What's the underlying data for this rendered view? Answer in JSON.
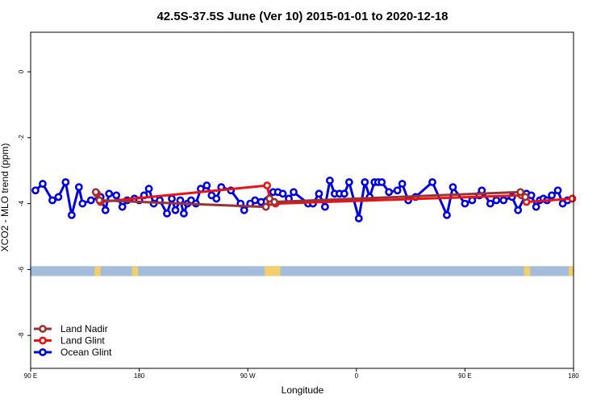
{
  "chart_data": {
    "type": "line",
    "title": "42.5S-37.5S June (Ver 10)   2015-01-01 to 2020-12-18",
    "xlabel": "Longitude",
    "ylabel": "XCO2 - MLO trend (ppm)",
    "xlim": [
      90,
      540
    ],
    "ylim": [
      -9,
      1.2
    ],
    "x_ticks": [
      {
        "value": 90,
        "label": "90 E"
      },
      {
        "value": 180,
        "label": "180"
      },
      {
        "value": 270,
        "label": "90 W"
      },
      {
        "value": 360,
        "label": "0"
      },
      {
        "value": 450,
        "label": "90 E"
      },
      {
        "value": 540,
        "label": "180"
      }
    ],
    "y_ticks": [
      {
        "value": 0,
        "label": "0"
      },
      {
        "value": -2,
        "label": "-2"
      },
      {
        "value": -4,
        "label": "-4"
      },
      {
        "value": -6,
        "label": "-6"
      },
      {
        "value": -8,
        "label": "-8"
      }
    ],
    "legend_position": "bottom-left",
    "surface_band": {
      "y_range": [
        -6.2,
        -5.9
      ],
      "ocean_color": "#a3bcd9",
      "land_color": "#f2cf6b",
      "land_segments": [
        [
          143,
          148
        ],
        [
          174,
          179
        ],
        [
          284,
          297
        ],
        [
          499,
          504
        ],
        [
          536,
          540
        ]
      ]
    },
    "series": [
      {
        "name": "Land Nadir",
        "color": "#993333",
        "x": [
          144,
          147,
          285,
          288,
          292,
          496,
          500
        ],
        "y": [
          -3.65,
          -3.9,
          -4.1,
          -3.85,
          -3.95,
          -3.65,
          -3.8
        ]
      },
      {
        "name": "Land Glint",
        "color": "#ee1111",
        "x": [
          145,
          148,
          286,
          289,
          293,
          497,
          501,
          539
        ],
        "y": [
          -3.7,
          -3.95,
          -3.45,
          -3.95,
          -4.0,
          -3.75,
          -3.95,
          -3.85
        ]
      },
      {
        "name": "Ocean Glint",
        "color": "#0000dd",
        "x": [
          94,
          100,
          108,
          113,
          119,
          124,
          130,
          133,
          140,
          148,
          152,
          155,
          161,
          166,
          170,
          176,
          180,
          184,
          188,
          192,
          197,
          203,
          207,
          210,
          214,
          217,
          220,
          223,
          227,
          231,
          236,
          240,
          244,
          248,
          256,
          264,
          267,
          272,
          276,
          281,
          291,
          295,
          299,
          304,
          308,
          320,
          324,
          329,
          334,
          338,
          342,
          346,
          350,
          354,
          362,
          367,
          371,
          375,
          378,
          381,
          387,
          394,
          398,
          403,
          409,
          423,
          435,
          440,
          450,
          456,
          462,
          464,
          471,
          476,
          482,
          489,
          494,
          501,
          505,
          509,
          512,
          515,
          518,
          522,
          527,
          531,
          535
        ],
        "y": [
          -3.6,
          -3.4,
          -3.9,
          -3.8,
          -3.35,
          -4.35,
          -3.5,
          -4.0,
          -3.9,
          -3.8,
          -4.2,
          -3.7,
          -3.75,
          -4.1,
          -3.9,
          -3.85,
          -3.9,
          -3.75,
          -3.55,
          -4.0,
          -3.9,
          -4.3,
          -3.85,
          -4.2,
          -3.9,
          -4.3,
          -4.0,
          -3.9,
          -4.0,
          -3.55,
          -3.45,
          -3.75,
          -3.85,
          -3.5,
          -3.6,
          -4.0,
          -4.2,
          -4.0,
          -3.9,
          -3.95,
          -3.65,
          -3.65,
          -3.7,
          -3.85,
          -3.65,
          -4.0,
          -4.0,
          -3.7,
          -4.1,
          -3.3,
          -3.7,
          -3.7,
          -3.7,
          -3.35,
          -4.45,
          -3.35,
          -3.8,
          -3.35,
          -3.35,
          -3.35,
          -3.65,
          -3.6,
          -3.4,
          -3.9,
          -3.8,
          -3.35,
          -4.35,
          -3.5,
          -4.0,
          -3.9,
          -3.75,
          -3.6,
          -4.0,
          -3.9,
          -3.9,
          -3.8,
          -4.2,
          -3.7,
          -3.75,
          -4.1,
          -3.9,
          -3.85,
          -3.9,
          -3.75,
          -3.6,
          -4.0,
          -3.9
        ]
      }
    ]
  }
}
